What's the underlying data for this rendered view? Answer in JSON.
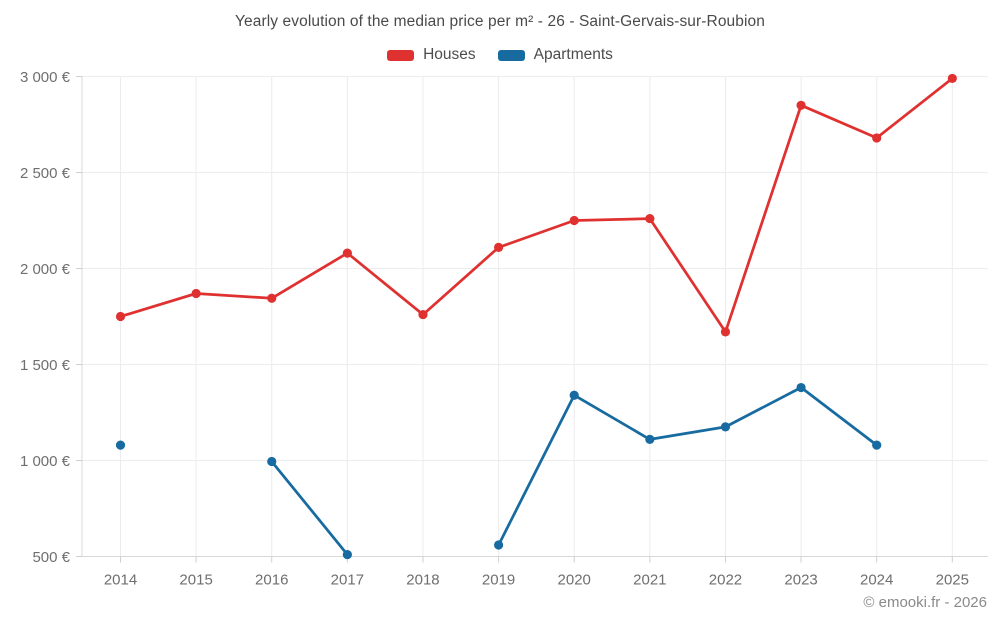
{
  "header": {
    "title": "Yearly evolution of the median price per m² - 26 - Saint-Gervais-sur-Roubion"
  },
  "legend": {
    "items": [
      {
        "label": "Houses",
        "color": "#e03131"
      },
      {
        "label": "Apartments",
        "color": "#176ba0"
      }
    ]
  },
  "footer": {
    "credit": "© emooki.fr - 2026"
  },
  "colors": {
    "houses": "#e03131",
    "apartments": "#176ba0",
    "gridline": "#ececec",
    "axis": "#d9d9d9",
    "tick": "#cfcfcf",
    "tick_text": "#6f6f6f"
  },
  "chart_data": {
    "type": "line",
    "title": "Yearly evolution of the median price per m² - 26 - Saint-Gervais-sur-Roubion",
    "x": [
      2014,
      2015,
      2016,
      2017,
      2018,
      2019,
      2020,
      2021,
      2022,
      2023,
      2024,
      2025
    ],
    "x_tick_labels": [
      "2014",
      "2015",
      "2016",
      "2017",
      "2018",
      "2019",
      "2020",
      "2021",
      "2022",
      "2023",
      "2024",
      "2025"
    ],
    "series": [
      {
        "name": "Houses",
        "color": "#e03131",
        "values": [
          1750,
          1870,
          1845,
          2080,
          1760,
          2110,
          2250,
          2260,
          1670,
          2850,
          2680,
          2990
        ]
      },
      {
        "name": "Apartments",
        "color": "#176ba0",
        "values": [
          1080,
          null,
          995,
          510,
          null,
          560,
          1340,
          1110,
          1175,
          1380,
          1080,
          null
        ]
      }
    ],
    "ylabel": "",
    "xlabel": "",
    "ylim": [
      500,
      3000
    ],
    "y_ticks": [
      {
        "value": 500,
        "label": "500 €"
      },
      {
        "value": 1000,
        "label": "1 000 €"
      },
      {
        "value": 1500,
        "label": "1 500 €"
      },
      {
        "value": 2000,
        "label": "2 000 €"
      },
      {
        "value": 2500,
        "label": "2 500 €"
      },
      {
        "value": 3000,
        "label": "3 000 €"
      }
    ],
    "grid": true,
    "legend_position": "top",
    "currency_suffix": " €"
  }
}
